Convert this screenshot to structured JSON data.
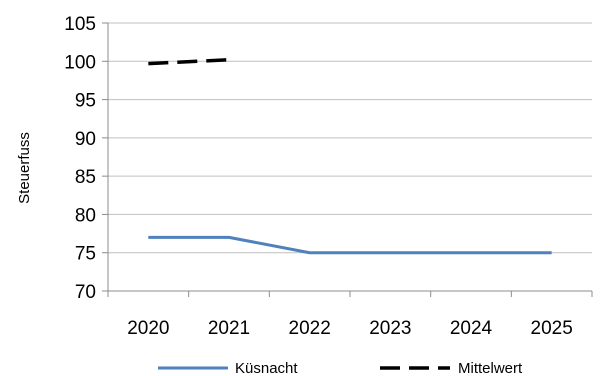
{
  "chart_data": {
    "type": "line",
    "title": "",
    "xlabel": "",
    "ylabel": "Steuerfuss",
    "categories": [
      "2020",
      "2021",
      "2022",
      "2023",
      "2024",
      "2025"
    ],
    "ylim": [
      70,
      105
    ],
    "yticks": [
      70,
      75,
      80,
      85,
      90,
      95,
      100,
      105
    ],
    "grid": true,
    "legend_position": "bottom",
    "series": [
      {
        "name": "Küsnacht",
        "color": "#4f81bd",
        "dash": "solid",
        "values": [
          77,
          77,
          75,
          75,
          75,
          75
        ]
      },
      {
        "name": "Mittelwert",
        "color": "#000000",
        "dash": "dashed",
        "values": [
          99.7,
          100.2,
          null,
          null,
          null,
          null
        ]
      }
    ]
  }
}
